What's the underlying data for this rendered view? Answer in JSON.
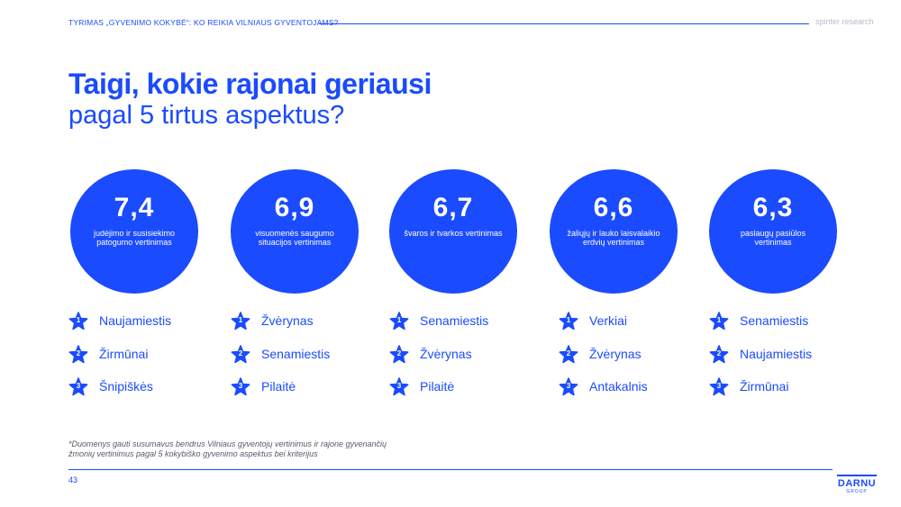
{
  "header": {
    "left_text": "TYRIMAS „GYVENIMO KOKYBĖ“: KO REIKIA VILNIAUS GYVENTOJAMS?",
    "right_text": "spinter research"
  },
  "title": "Taigi, kokie rajonai geriausi",
  "subtitle": "pagal 5 tirtus aspektus?",
  "columns": [
    {
      "score": "7,4",
      "description": "judėjimo ir susisiekimo patogumo vertinimas",
      "ranks": [
        {
          "num": "1",
          "name": "Naujamiestis"
        },
        {
          "num": "2",
          "name": "Žirmūnai"
        },
        {
          "num": "3",
          "name": "Šnipiškės"
        }
      ]
    },
    {
      "score": "6,9",
      "description": "visuomenės saugumo situacijos vertinimas",
      "ranks": [
        {
          "num": "1",
          "name": "Žvėrynas"
        },
        {
          "num": "2",
          "name": "Senamiestis"
        },
        {
          "num": "3",
          "name": "Pilaitė"
        }
      ]
    },
    {
      "score": "6,7",
      "description": "švaros ir tvarkos vertinimas",
      "ranks": [
        {
          "num": "1",
          "name": "Senamiestis"
        },
        {
          "num": "2",
          "name": "Žvėrynas"
        },
        {
          "num": "3",
          "name": "Pilaitė"
        }
      ]
    },
    {
      "score": "6,6",
      "description": "žaliųjų ir lauko laisvalaikio erdvių vertinimas",
      "ranks": [
        {
          "num": "1",
          "name": "Verkiai"
        },
        {
          "num": "2",
          "name": "Žvėrynas"
        },
        {
          "num": "3",
          "name": "Antakalnis"
        }
      ]
    },
    {
      "score": "6,3",
      "description": "paslaugų pasiūlos vertinimas",
      "ranks": [
        {
          "num": "1",
          "name": "Senamiestis"
        },
        {
          "num": "2",
          "name": "Naujamiestis"
        },
        {
          "num": "3",
          "name": "Žirmūnai"
        }
      ]
    }
  ],
  "footnote": "*Duomenys gauti susumavus bendrus Vilniaus gyventojų vertinimus ir rajone gyvenančių žmonių vertinimus pagal 5 kokybiško gyvenimo aspektus bei kriterijus",
  "page_number": "43",
  "logo": {
    "main": "DARNU",
    "sub": "GROUP"
  },
  "colors": {
    "accent": "#1a4bff",
    "muted": "#b7bccc"
  }
}
